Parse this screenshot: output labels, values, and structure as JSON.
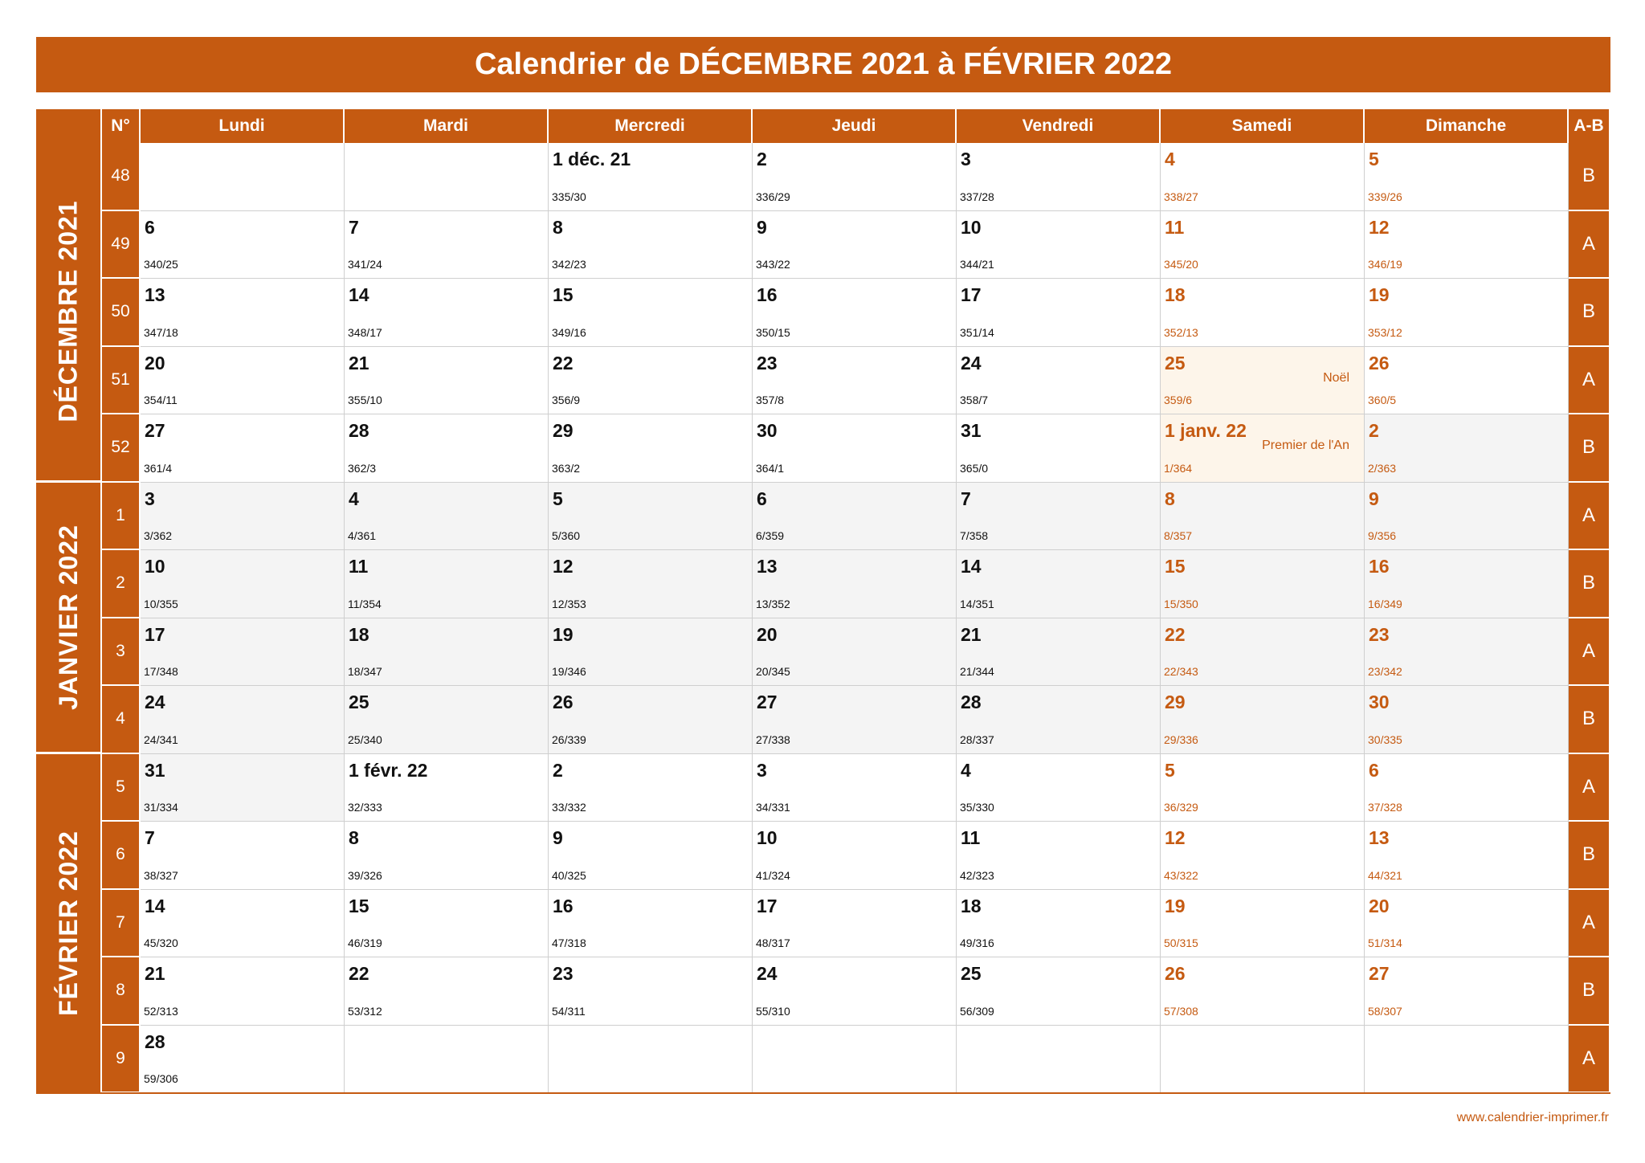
{
  "title": "Calendrier de DÉCEMBRE 2021 à FÉVRIER 2022",
  "header": {
    "week_no": "N°",
    "days": [
      "Lundi",
      "Mardi",
      "Mercredi",
      "Jeudi",
      "Vendredi",
      "Samedi",
      "Dimanche"
    ],
    "ab": "A-B"
  },
  "months": [
    {
      "label": "DÉCEMBRE 2021",
      "rows": 5
    },
    {
      "label": "JANVIER 2022",
      "rows": 4
    },
    {
      "label": "FÉVRIER 2022",
      "rows": 5
    }
  ],
  "weeks": [
    {
      "no": "48",
      "ab": "B",
      "days": [
        null,
        null,
        {
          "d": "1 déc. 21",
          "n": "335/30"
        },
        {
          "d": "2",
          "n": "336/29"
        },
        {
          "d": "3",
          "n": "337/28"
        },
        {
          "d": "4",
          "n": "338/27"
        },
        {
          "d": "5",
          "n": "339/26"
        }
      ]
    },
    {
      "no": "49",
      "ab": "A",
      "days": [
        {
          "d": "6",
          "n": "340/25"
        },
        {
          "d": "7",
          "n": "341/24"
        },
        {
          "d": "8",
          "n": "342/23"
        },
        {
          "d": "9",
          "n": "343/22"
        },
        {
          "d": "10",
          "n": "344/21"
        },
        {
          "d": "11",
          "n": "345/20"
        },
        {
          "d": "12",
          "n": "346/19"
        }
      ]
    },
    {
      "no": "50",
      "ab": "B",
      "days": [
        {
          "d": "13",
          "n": "347/18"
        },
        {
          "d": "14",
          "n": "348/17"
        },
        {
          "d": "15",
          "n": "349/16"
        },
        {
          "d": "16",
          "n": "350/15"
        },
        {
          "d": "17",
          "n": "351/14"
        },
        {
          "d": "18",
          "n": "352/13"
        },
        {
          "d": "19",
          "n": "353/12"
        }
      ]
    },
    {
      "no": "51",
      "ab": "A",
      "days": [
        {
          "d": "20",
          "n": "354/11"
        },
        {
          "d": "21",
          "n": "355/10"
        },
        {
          "d": "22",
          "n": "356/9"
        },
        {
          "d": "23",
          "n": "357/8"
        },
        {
          "d": "24",
          "n": "358/7"
        },
        {
          "d": "25",
          "n": "359/6",
          "h": "Noël"
        },
        {
          "d": "26",
          "n": "360/5"
        }
      ]
    },
    {
      "no": "52",
      "ab": "B",
      "days": [
        {
          "d": "27",
          "n": "361/4"
        },
        {
          "d": "28",
          "n": "362/3"
        },
        {
          "d": "29",
          "n": "363/2"
        },
        {
          "d": "30",
          "n": "364/1"
        },
        {
          "d": "31",
          "n": "365/0"
        },
        {
          "d": "1 janv. 22",
          "n": "1/364",
          "h": "Premier de l'An"
        },
        {
          "d": "2",
          "n": "2/363"
        }
      ]
    },
    {
      "no": "1",
      "ab": "A",
      "days": [
        {
          "d": "3",
          "n": "3/362"
        },
        {
          "d": "4",
          "n": "4/361"
        },
        {
          "d": "5",
          "n": "5/360"
        },
        {
          "d": "6",
          "n": "6/359"
        },
        {
          "d": "7",
          "n": "7/358"
        },
        {
          "d": "8",
          "n": "8/357"
        },
        {
          "d": "9",
          "n": "9/356"
        }
      ]
    },
    {
      "no": "2",
      "ab": "B",
      "days": [
        {
          "d": "10",
          "n": "10/355"
        },
        {
          "d": "11",
          "n": "11/354"
        },
        {
          "d": "12",
          "n": "12/353"
        },
        {
          "d": "13",
          "n": "13/352"
        },
        {
          "d": "14",
          "n": "14/351"
        },
        {
          "d": "15",
          "n": "15/350"
        },
        {
          "d": "16",
          "n": "16/349"
        }
      ]
    },
    {
      "no": "3",
      "ab": "A",
      "days": [
        {
          "d": "17",
          "n": "17/348"
        },
        {
          "d": "18",
          "n": "18/347"
        },
        {
          "d": "19",
          "n": "19/346"
        },
        {
          "d": "20",
          "n": "20/345"
        },
        {
          "d": "21",
          "n": "21/344"
        },
        {
          "d": "22",
          "n": "22/343"
        },
        {
          "d": "23",
          "n": "23/342"
        }
      ]
    },
    {
      "no": "4",
      "ab": "B",
      "days": [
        {
          "d": "24",
          "n": "24/341"
        },
        {
          "d": "25",
          "n": "25/340"
        },
        {
          "d": "26",
          "n": "26/339"
        },
        {
          "d": "27",
          "n": "27/338"
        },
        {
          "d": "28",
          "n": "28/337"
        },
        {
          "d": "29",
          "n": "29/336"
        },
        {
          "d": "30",
          "n": "30/335"
        }
      ]
    },
    {
      "no": "5",
      "ab": "A",
      "days": [
        {
          "d": "31",
          "n": "31/334"
        },
        {
          "d": "1 févr. 22",
          "n": "32/333"
        },
        {
          "d": "2",
          "n": "33/332"
        },
        {
          "d": "3",
          "n": "34/331"
        },
        {
          "d": "4",
          "n": "35/330"
        },
        {
          "d": "5",
          "n": "36/329"
        },
        {
          "d": "6",
          "n": "37/328"
        }
      ]
    },
    {
      "no": "6",
      "ab": "B",
      "days": [
        {
          "d": "7",
          "n": "38/327"
        },
        {
          "d": "8",
          "n": "39/326"
        },
        {
          "d": "9",
          "n": "40/325"
        },
        {
          "d": "10",
          "n": "41/324"
        },
        {
          "d": "11",
          "n": "42/323"
        },
        {
          "d": "12",
          "n": "43/322"
        },
        {
          "d": "13",
          "n": "44/321"
        }
      ]
    },
    {
      "no": "7",
      "ab": "A",
      "days": [
        {
          "d": "14",
          "n": "45/320"
        },
        {
          "d": "15",
          "n": "46/319"
        },
        {
          "d": "16",
          "n": "47/318"
        },
        {
          "d": "17",
          "n": "48/317"
        },
        {
          "d": "18",
          "n": "49/316"
        },
        {
          "d": "19",
          "n": "50/315"
        },
        {
          "d": "20",
          "n": "51/314"
        }
      ]
    },
    {
      "no": "8",
      "ab": "B",
      "days": [
        {
          "d": "21",
          "n": "52/313"
        },
        {
          "d": "22",
          "n": "53/312"
        },
        {
          "d": "23",
          "n": "54/311"
        },
        {
          "d": "24",
          "n": "55/310"
        },
        {
          "d": "25",
          "n": "56/309"
        },
        {
          "d": "26",
          "n": "57/308"
        },
        {
          "d": "27",
          "n": "58/307"
        }
      ]
    },
    {
      "no": "9",
      "ab": "A",
      "days": [
        {
          "d": "28",
          "n": "59/306"
        },
        null,
        null,
        null,
        null,
        null,
        null
      ]
    }
  ],
  "footer": "www.calendrier-imprimer.fr",
  "colors": {
    "accent": "#c55a11",
    "shade": "#f4f4f4",
    "holiday_bg": "#fdf5ea"
  }
}
